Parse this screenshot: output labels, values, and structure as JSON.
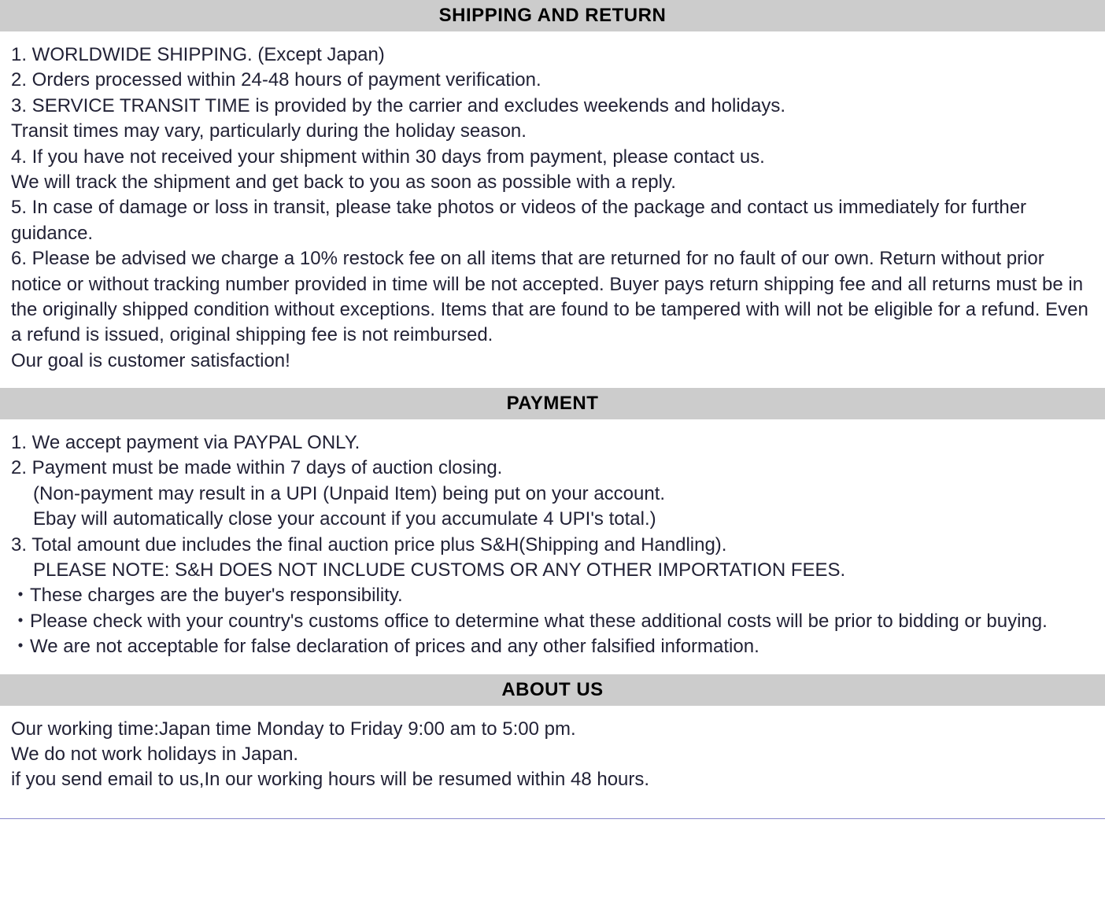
{
  "colors": {
    "header_bg": "#cccccc",
    "text": "#1a1a2e",
    "body_bg": "#ffffff",
    "bottom_border": "#8888cc"
  },
  "typography": {
    "header_fontsize": 24,
    "body_fontsize": 24,
    "header_weight": "bold",
    "font_family": "Verdana"
  },
  "sections": {
    "shipping": {
      "title": "SHIPPING AND RETURN",
      "lines": {
        "l1": "1. WORLDWIDE SHIPPING. (Except Japan)",
        "l2": "2. Orders processed within 24-48 hours of payment verification.",
        "l3": "3. SERVICE TRANSIT TIME is provided by the carrier and excludes weekends and holidays.",
        "l4": "Transit times may vary, particularly during the holiday season.",
        "l5": "4. If you have not received your shipment within 30 days from payment, please contact us.",
        "l6": "We will track the shipment and get back to you as soon as possible with a reply.",
        "l7": "5. In case of damage or loss in transit, please take photos or videos of the package and contact us immediately for further guidance.",
        "l8": "6. Please be advised we charge a 10% restock fee on all items that are returned for no fault of our own. Return without prior notice or without tracking number provided in time will be not accepted. Buyer pays return shipping fee and all returns must be in the originally shipped condition without exceptions. Items that are found to be tampered with will not be eligible for a refund. Even a refund is issued, original shipping fee is not reimbursed.",
        "l9": "Our goal is customer satisfaction!"
      }
    },
    "payment": {
      "title": "PAYMENT",
      "lines": {
        "l1": "1. We accept payment via PAYPAL ONLY.",
        "l2": "2. Payment must be made within 7 days of auction closing.",
        "l3": "(Non-payment may result in a UPI (Unpaid Item) being put on your account.",
        "l4": "Ebay will automatically close your account if you accumulate 4 UPI's total.)",
        "l5": "3. Total amount due includes the final auction price plus S&H(Shipping and Handling).",
        "l6": "PLEASE NOTE: S&H DOES NOT INCLUDE CUSTOMS OR ANY OTHER IMPORTATION FEES.",
        "l7": "・These charges are the buyer's responsibility.",
        "l8": "・Please check with your country's customs office to determine what these additional costs will be prior to bidding or buying.",
        "l9": "・We are not acceptable for false declaration of prices and any other falsified information."
      }
    },
    "about": {
      "title": "ABOUT US",
      "lines": {
        "l1": "Our working time:Japan time Monday to Friday 9:00 am to 5:00 pm.",
        "l2": "We do not work holidays in Japan.",
        "l3": "if you send email to us,In our working hours will be resumed within 48 hours."
      }
    }
  }
}
